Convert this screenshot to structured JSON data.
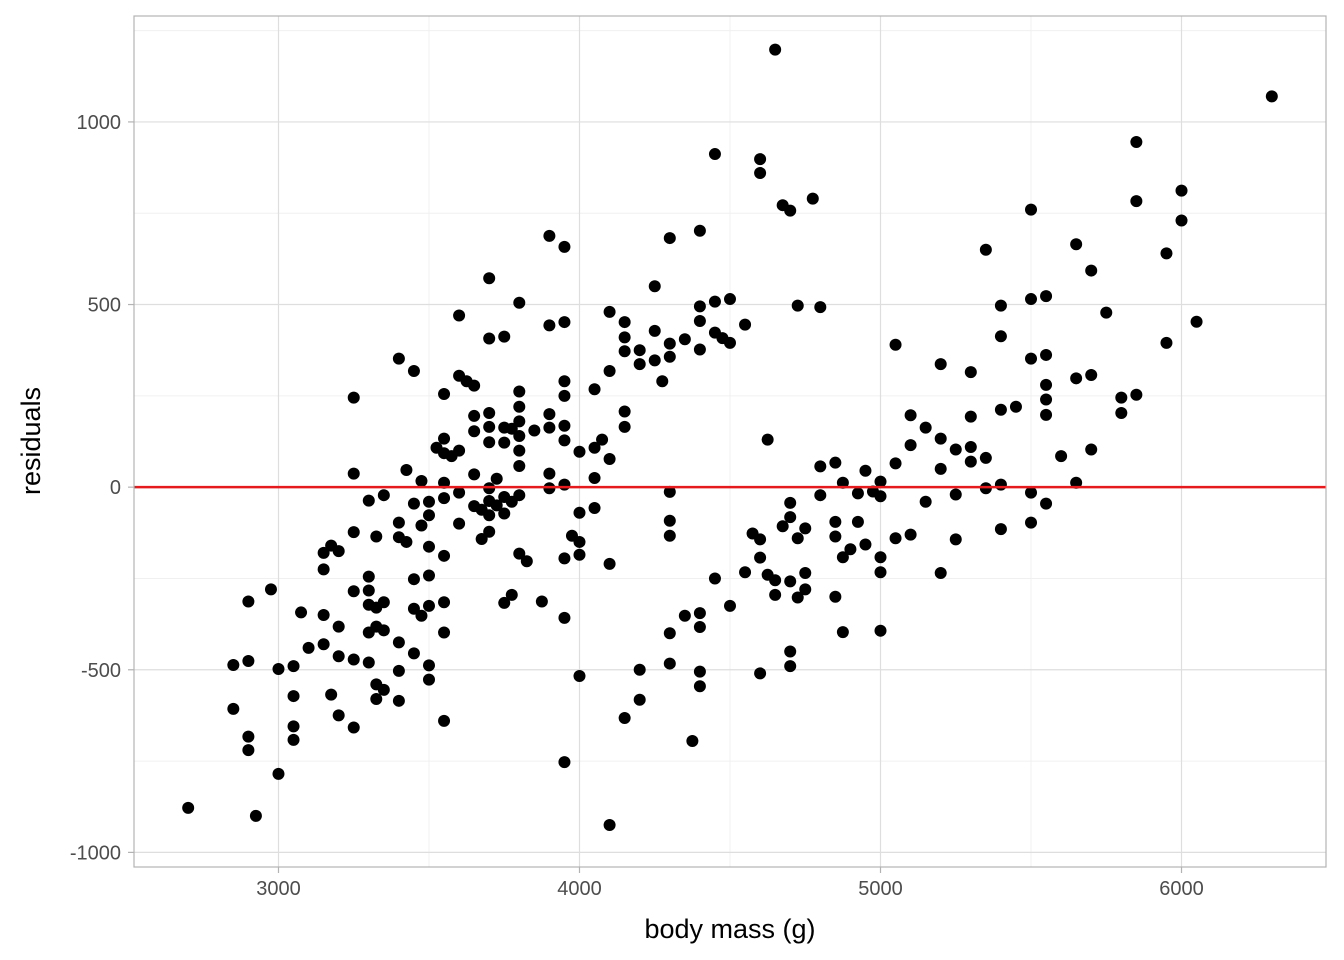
{
  "chart_data": {
    "type": "scatter",
    "title": "",
    "xlabel": "body mass (g)",
    "ylabel": "residuals",
    "xlim": [
      2520,
      6480
    ],
    "ylim": [
      -1040,
      1290
    ],
    "x_ticks": [
      3000,
      4000,
      5000,
      6000
    ],
    "x_tick_labels": [
      "3000",
      "4000",
      "5000",
      "6000"
    ],
    "y_ticks": [
      -1000,
      -500,
      0,
      500,
      1000
    ],
    "y_tick_labels": [
      "-1000",
      "-500",
      "0",
      "500",
      "1000"
    ],
    "grid": true,
    "reference_line": {
      "y": 0,
      "color": "#e41a1c"
    },
    "point_color": "#000000",
    "points": [
      [
        2700,
        -878
      ],
      [
        2850,
        -487
      ],
      [
        2850,
        -607
      ],
      [
        2900,
        -313
      ],
      [
        2900,
        -476
      ],
      [
        2900,
        -683
      ],
      [
        2900,
        -720
      ],
      [
        2925,
        -900
      ],
      [
        2975,
        -280
      ],
      [
        3000,
        -498
      ],
      [
        3000,
        -785
      ],
      [
        3050,
        -490
      ],
      [
        3050,
        -572
      ],
      [
        3050,
        -655
      ],
      [
        3050,
        -692
      ],
      [
        3075,
        -343
      ],
      [
        3100,
        -440
      ],
      [
        3150,
        -180
      ],
      [
        3150,
        -225
      ],
      [
        3150,
        -350
      ],
      [
        3150,
        -430
      ],
      [
        3175,
        -160
      ],
      [
        3175,
        -568
      ],
      [
        3200,
        -175
      ],
      [
        3200,
        -382
      ],
      [
        3200,
        -463
      ],
      [
        3200,
        -625
      ],
      [
        3250,
        245
      ],
      [
        3250,
        37
      ],
      [
        3250,
        -123
      ],
      [
        3250,
        -285
      ],
      [
        3250,
        -472
      ],
      [
        3250,
        -658
      ],
      [
        3300,
        -37
      ],
      [
        3300,
        -245
      ],
      [
        3300,
        -283
      ],
      [
        3300,
        -322
      ],
      [
        3300,
        -398
      ],
      [
        3300,
        -480
      ],
      [
        3325,
        -135
      ],
      [
        3325,
        -330
      ],
      [
        3325,
        -382
      ],
      [
        3325,
        -540
      ],
      [
        3325,
        -580
      ],
      [
        3350,
        -22
      ],
      [
        3350,
        -315
      ],
      [
        3350,
        -392
      ],
      [
        3350,
        -555
      ],
      [
        3400,
        352
      ],
      [
        3400,
        -97
      ],
      [
        3400,
        -137
      ],
      [
        3400,
        -425
      ],
      [
        3400,
        -503
      ],
      [
        3400,
        -585
      ],
      [
        3425,
        47
      ],
      [
        3425,
        -150
      ],
      [
        3450,
        318
      ],
      [
        3450,
        -45
      ],
      [
        3450,
        -252
      ],
      [
        3450,
        -333
      ],
      [
        3450,
        -455
      ],
      [
        3475,
        17
      ],
      [
        3475,
        -105
      ],
      [
        3475,
        -352
      ],
      [
        3500,
        -40
      ],
      [
        3500,
        -77
      ],
      [
        3500,
        -163
      ],
      [
        3500,
        -242
      ],
      [
        3500,
        -325
      ],
      [
        3500,
        -488
      ],
      [
        3500,
        -527
      ],
      [
        3525,
        108
      ],
      [
        3550,
        255
      ],
      [
        3550,
        133
      ],
      [
        3550,
        93
      ],
      [
        3550,
        12
      ],
      [
        3550,
        -30
      ],
      [
        3550,
        -188
      ],
      [
        3550,
        -315
      ],
      [
        3550,
        -398
      ],
      [
        3550,
        -640
      ],
      [
        3575,
        85
      ],
      [
        3600,
        470
      ],
      [
        3600,
        305
      ],
      [
        3600,
        100
      ],
      [
        3600,
        -15
      ],
      [
        3600,
        -100
      ],
      [
        3625,
        290
      ],
      [
        3650,
        278
      ],
      [
        3650,
        195
      ],
      [
        3650,
        153
      ],
      [
        3650,
        35
      ],
      [
        3650,
        -52
      ],
      [
        3675,
        -62
      ],
      [
        3675,
        -142
      ],
      [
        3700,
        572
      ],
      [
        3700,
        407
      ],
      [
        3700,
        203
      ],
      [
        3700,
        165
      ],
      [
        3700,
        123
      ],
      [
        3700,
        -3
      ],
      [
        3700,
        -38
      ],
      [
        3700,
        -77
      ],
      [
        3700,
        -122
      ],
      [
        3725,
        23
      ],
      [
        3725,
        -50
      ],
      [
        3750,
        412
      ],
      [
        3750,
        163
      ],
      [
        3750,
        122
      ],
      [
        3750,
        -27
      ],
      [
        3750,
        -72
      ],
      [
        3750,
        -317
      ],
      [
        3775,
        160
      ],
      [
        3775,
        -40
      ],
      [
        3775,
        -295
      ],
      [
        3800,
        505
      ],
      [
        3800,
        262
      ],
      [
        3800,
        220
      ],
      [
        3800,
        180
      ],
      [
        3800,
        140
      ],
      [
        3800,
        100
      ],
      [
        3800,
        58
      ],
      [
        3800,
        -22
      ],
      [
        3800,
        -182
      ],
      [
        3825,
        -203
      ],
      [
        3850,
        155
      ],
      [
        3875,
        -313
      ],
      [
        3900,
        688
      ],
      [
        3900,
        443
      ],
      [
        3900,
        200
      ],
      [
        3900,
        163
      ],
      [
        3900,
        37
      ],
      [
        3900,
        -3
      ],
      [
        3950,
        658
      ],
      [
        3950,
        452
      ],
      [
        3950,
        290
      ],
      [
        3950,
        250
      ],
      [
        3950,
        168
      ],
      [
        3950,
        128
      ],
      [
        3950,
        7
      ],
      [
        3950,
        -195
      ],
      [
        3950,
        -358
      ],
      [
        3950,
        -753
      ],
      [
        3975,
        -133
      ],
      [
        4000,
        97
      ],
      [
        4000,
        -70
      ],
      [
        4000,
        -150
      ],
      [
        4000,
        -185
      ],
      [
        4000,
        -517
      ],
      [
        4050,
        268
      ],
      [
        4050,
        108
      ],
      [
        4050,
        25
      ],
      [
        4050,
        -57
      ],
      [
        4075,
        130
      ],
      [
        4100,
        480
      ],
      [
        4100,
        318
      ],
      [
        4100,
        77
      ],
      [
        4100,
        -210
      ],
      [
        4100,
        -925
      ],
      [
        4150,
        452
      ],
      [
        4150,
        410
      ],
      [
        4150,
        372
      ],
      [
        4150,
        207
      ],
      [
        4150,
        165
      ],
      [
        4150,
        -632
      ],
      [
        4200,
        375
      ],
      [
        4200,
        337
      ],
      [
        4200,
        -500
      ],
      [
        4200,
        -582
      ],
      [
        4250,
        550
      ],
      [
        4250,
        428
      ],
      [
        4250,
        347
      ],
      [
        4275,
        290
      ],
      [
        4300,
        682
      ],
      [
        4300,
        393
      ],
      [
        4300,
        357
      ],
      [
        4300,
        -13
      ],
      [
        4300,
        -92
      ],
      [
        4300,
        -133
      ],
      [
        4300,
        -400
      ],
      [
        4300,
        -483
      ],
      [
        4350,
        405
      ],
      [
        4350,
        -352
      ],
      [
        4375,
        -695
      ],
      [
        4400,
        702
      ],
      [
        4400,
        495
      ],
      [
        4400,
        455
      ],
      [
        4400,
        377
      ],
      [
        4400,
        -345
      ],
      [
        4400,
        -383
      ],
      [
        4400,
        -505
      ],
      [
        4400,
        -545
      ],
      [
        4450,
        912
      ],
      [
        4450,
        508
      ],
      [
        4450,
        423
      ],
      [
        4450,
        -250
      ],
      [
        4475,
        408
      ],
      [
        4500,
        515
      ],
      [
        4500,
        395
      ],
      [
        4500,
        -325
      ],
      [
        4550,
        445
      ],
      [
        4550,
        -233
      ],
      [
        4575,
        -127
      ],
      [
        4600,
        898
      ],
      [
        4600,
        860
      ],
      [
        4600,
        -143
      ],
      [
        4600,
        -193
      ],
      [
        4600,
        -510
      ],
      [
        4625,
        130
      ],
      [
        4625,
        -240
      ],
      [
        4650,
        1198
      ],
      [
        4650,
        -255
      ],
      [
        4650,
        -295
      ],
      [
        4675,
        772
      ],
      [
        4675,
        -107
      ],
      [
        4700,
        757
      ],
      [
        4700,
        -43
      ],
      [
        4700,
        -82
      ],
      [
        4700,
        -258
      ],
      [
        4700,
        -450
      ],
      [
        4700,
        -490
      ],
      [
        4725,
        497
      ],
      [
        4725,
        -140
      ],
      [
        4725,
        -302
      ],
      [
        4750,
        -113
      ],
      [
        4750,
        -235
      ],
      [
        4750,
        -280
      ],
      [
        4775,
        790
      ],
      [
        4800,
        493
      ],
      [
        4800,
        57
      ],
      [
        4800,
        -22
      ],
      [
        4850,
        67
      ],
      [
        4850,
        -95
      ],
      [
        4850,
        -135
      ],
      [
        4850,
        -300
      ],
      [
        4875,
        12
      ],
      [
        4875,
        -192
      ],
      [
        4875,
        -397
      ],
      [
        4900,
        -170
      ],
      [
        4925,
        -95
      ],
      [
        4925,
        -17
      ],
      [
        4950,
        45
      ],
      [
        4950,
        -157
      ],
      [
        4975,
        -12
      ],
      [
        5000,
        15
      ],
      [
        5000,
        -25
      ],
      [
        5000,
        -192
      ],
      [
        5000,
        -233
      ],
      [
        5000,
        -393
      ],
      [
        5050,
        390
      ],
      [
        5050,
        65
      ],
      [
        5050,
        -140
      ],
      [
        5100,
        197
      ],
      [
        5100,
        115
      ],
      [
        5100,
        -130
      ],
      [
        5150,
        163
      ],
      [
        5150,
        -40
      ],
      [
        5200,
        337
      ],
      [
        5200,
        133
      ],
      [
        5200,
        50
      ],
      [
        5200,
        -235
      ],
      [
        5250,
        103
      ],
      [
        5250,
        -20
      ],
      [
        5250,
        -143
      ],
      [
        5300,
        315
      ],
      [
        5300,
        193
      ],
      [
        5300,
        110
      ],
      [
        5300,
        70
      ],
      [
        5350,
        650
      ],
      [
        5350,
        80
      ],
      [
        5350,
        -3
      ],
      [
        5400,
        497
      ],
      [
        5400,
        413
      ],
      [
        5400,
        212
      ],
      [
        5400,
        7
      ],
      [
        5400,
        -115
      ],
      [
        5450,
        220
      ],
      [
        5500,
        760
      ],
      [
        5500,
        515
      ],
      [
        5500,
        352
      ],
      [
        5500,
        -15
      ],
      [
        5500,
        -97
      ],
      [
        5550,
        523
      ],
      [
        5550,
        362
      ],
      [
        5550,
        280
      ],
      [
        5550,
        240
      ],
      [
        5550,
        198
      ],
      [
        5550,
        -45
      ],
      [
        5600,
        85
      ],
      [
        5650,
        665
      ],
      [
        5650,
        298
      ],
      [
        5650,
        12
      ],
      [
        5700,
        593
      ],
      [
        5700,
        307
      ],
      [
        5700,
        103
      ],
      [
        5750,
        478
      ],
      [
        5800,
        245
      ],
      [
        5800,
        203
      ],
      [
        5850,
        945
      ],
      [
        5850,
        783
      ],
      [
        5850,
        253
      ],
      [
        5950,
        640
      ],
      [
        5950,
        395
      ],
      [
        6000,
        812
      ],
      [
        6000,
        730
      ],
      [
        6050,
        453
      ],
      [
        6300,
        1070
      ]
    ]
  }
}
